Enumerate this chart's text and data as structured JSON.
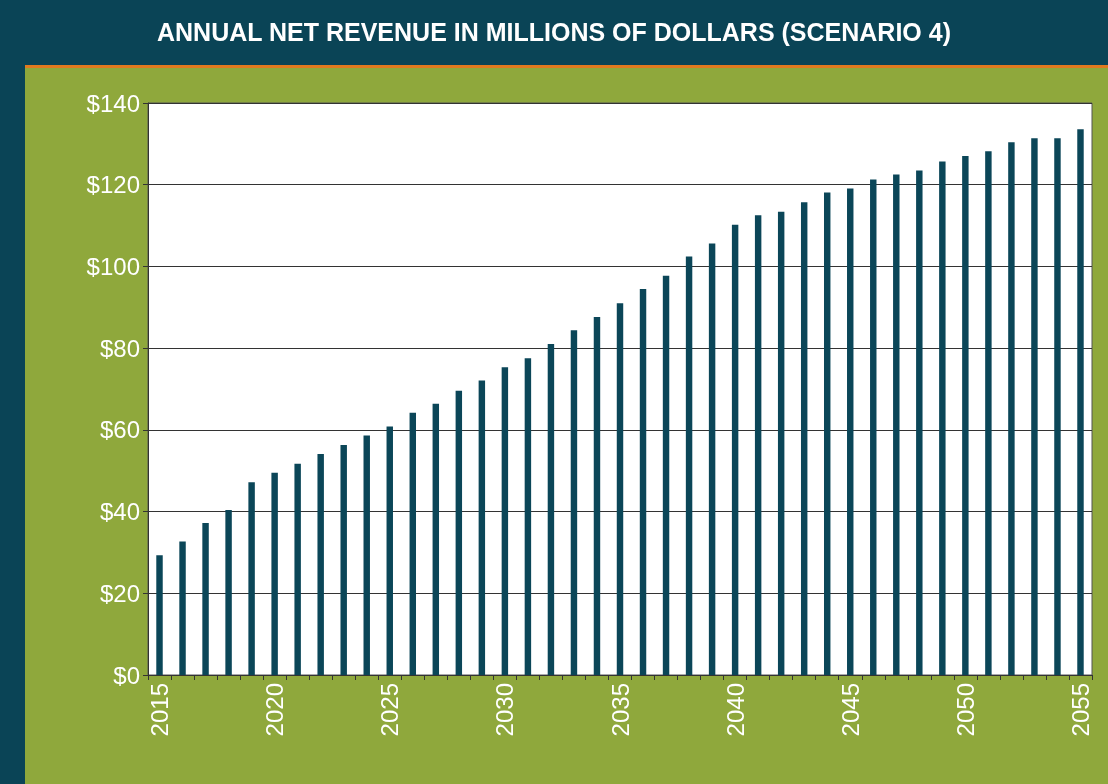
{
  "chart_data": {
    "type": "bar",
    "title": "ANNUAL NET REVENUE IN MILLIONS OF DOLLARS (SCENARIO 4)",
    "categories": [
      "2015",
      null,
      null,
      null,
      null,
      "2020",
      null,
      null,
      null,
      null,
      "2025",
      null,
      null,
      null,
      null,
      "2030",
      null,
      null,
      null,
      null,
      "2035",
      null,
      null,
      null,
      null,
      "2040",
      null,
      null,
      null,
      null,
      "2045",
      null,
      null,
      null,
      null,
      "2050",
      null,
      null,
      null,
      null,
      "2055"
    ],
    "values": [
      29.3,
      32.7,
      37.2,
      40.4,
      47.2,
      49.5,
      51.7,
      54.1,
      56.3,
      58.6,
      60.8,
      64.2,
      66.4,
      69.6,
      72.1,
      75.3,
      77.5,
      81.0,
      84.4,
      87.6,
      91.0,
      94.5,
      97.7,
      102.4,
      105.6,
      110.2,
      112.5,
      113.4,
      115.7,
      118.1,
      119.1,
      121.3,
      122.5,
      123.5,
      125.7,
      127.0,
      128.2,
      130.4,
      131.4,
      131.4,
      133.6
    ],
    "color": "#0b4658",
    "ylim": [
      0,
      140
    ],
    "yticks": [
      {
        "value": 0,
        "label": "$0"
      },
      {
        "value": 20,
        "label": "$20"
      },
      {
        "value": 40,
        "label": "$40"
      },
      {
        "value": 60,
        "label": "$60"
      },
      {
        "value": 80,
        "label": "$80"
      },
      {
        "value": 100,
        "label": "$100"
      },
      {
        "value": 120,
        "label": "$120"
      },
      {
        "value": 140,
        "label": "$140"
      }
    ],
    "grid": "y"
  }
}
